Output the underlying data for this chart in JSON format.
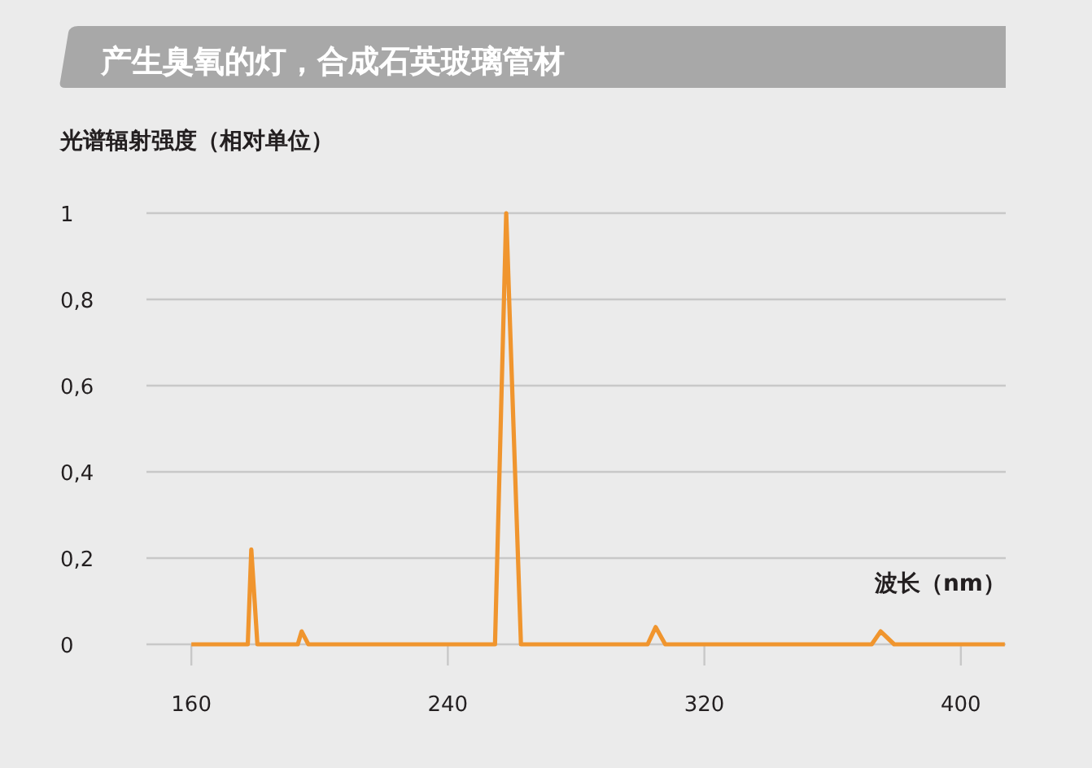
{
  "chart_data": {
    "type": "line",
    "title": "产生臭氧的灯，合成石英玻璃管材",
    "ylabel": "光谱辐射强度（相对单位）",
    "xlabel": "波长（nm）",
    "xlim": [
      146,
      414
    ],
    "xticks": [
      160,
      240,
      320,
      400
    ],
    "ylim": [
      0,
      1
    ],
    "yticks": [
      {
        "value": 0,
        "label": "0"
      },
      {
        "value": 0.2,
        "label": "0,2"
      },
      {
        "value": 0.4,
        "label": "0,4"
      },
      {
        "value": 0.6,
        "label": "0,6"
      },
      {
        "value": 0.8,
        "label": "0,8"
      },
      {
        "value": 1,
        "label": "1"
      }
    ],
    "grid": "y",
    "marker": "none",
    "line_style": "solid",
    "series": [
      {
        "color": "#f0952e",
        "x": [
          160,
          177.6,
          178.7,
          180.6,
          193.2,
          194.4,
          196.5,
          254.7,
          258.2,
          262.8,
          302.3,
          304.8,
          307.8,
          372.2,
          375,
          379.2,
          413.7
        ],
        "values": [
          0,
          0,
          0.22,
          0,
          0,
          0.03,
          0,
          0,
          1,
          0,
          0,
          0.04,
          0,
          0,
          0.03,
          0,
          0
        ]
      }
    ]
  }
}
